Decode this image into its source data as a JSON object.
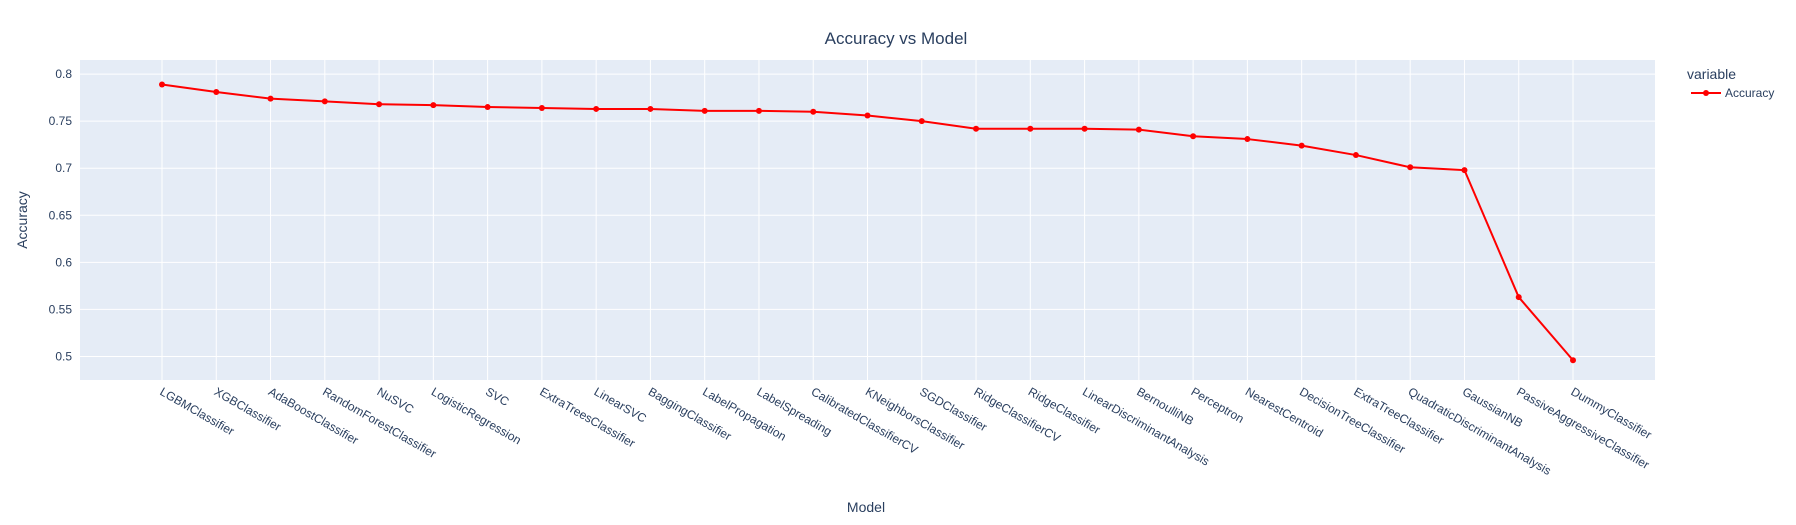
{
  "chart_data": {
    "type": "line",
    "title": "Accuracy vs Model",
    "xlabel": "Model",
    "ylabel": "Accuracy",
    "ylim": [
      0.475,
      0.815
    ],
    "yticks": [
      0.5,
      0.55,
      0.6,
      0.65,
      0.7,
      0.75,
      0.8
    ],
    "ytick_labels": [
      "0.5",
      "0.55",
      "0.6",
      "0.65",
      "0.7",
      "0.75",
      "0.8"
    ],
    "grid": true,
    "legend_title": "variable",
    "legend_position": "top-right",
    "categories": [
      "LGBMClassifier",
      "XGBClassifier",
      "AdaBoostClassifier",
      "RandomForestClassifier",
      "NuSVC",
      "LogisticRegression",
      "SVC",
      "ExtraTreesClassifier",
      "LinearSVC",
      "BaggingClassifier",
      "LabelPropagation",
      "LabelSpreading",
      "CalibratedClassifierCV",
      "KNeighborsClassifier",
      "SGDClassifier",
      "RidgeClassifierCV",
      "RidgeClassifier",
      "LinearDiscriminantAnalysis",
      "BernoulliNB",
      "Perceptron",
      "NearestCentroid",
      "DecisionTreeClassifier",
      "ExtraTreeClassifier",
      "QuadraticDiscriminantAnalysis",
      "GaussianNB",
      "PassiveAggressiveClassifier",
      "DummyClassifier"
    ],
    "series": [
      {
        "name": "Accuracy",
        "color": "#ff0000",
        "values": [
          0.789,
          0.781,
          0.774,
          0.771,
          0.768,
          0.767,
          0.765,
          0.764,
          0.763,
          0.763,
          0.761,
          0.761,
          0.76,
          0.756,
          0.75,
          0.742,
          0.742,
          0.742,
          0.741,
          0.734,
          0.731,
          0.724,
          0.714,
          0.701,
          0.698,
          0.563,
          0.496
        ]
      }
    ]
  }
}
